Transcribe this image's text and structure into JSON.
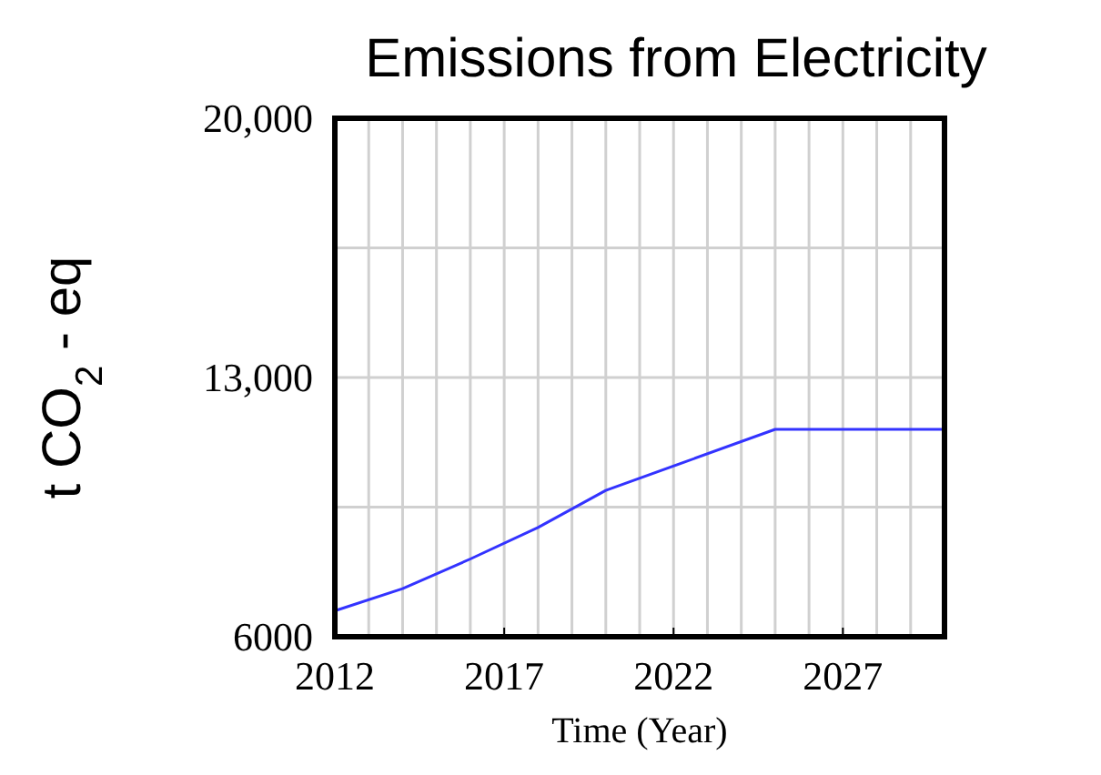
{
  "chart_data": {
    "type": "line",
    "title": "Emissions from Electricity",
    "xlabel": "Time (Year)",
    "ylabel": "t CO$_{2}$ - eq",
    "x": [
      2012,
      2014,
      2016,
      2018,
      2020,
      2025,
      2030
    ],
    "series": [
      {
        "color": "#3333ff",
        "values": [
          6700,
          7300,
          8100,
          8950,
          9950,
          11600,
          11600
        ]
      }
    ],
    "xlim": [
      2012,
      2030
    ],
    "xticks": [
      2012,
      2017,
      2022,
      2027
    ],
    "ylim": [
      6000,
      20000
    ],
    "yticks": [
      {
        "value": 6000,
        "label": "6000"
      },
      {
        "value": 9500,
        "label": null
      },
      {
        "value": 13000,
        "label": "13,000"
      },
      {
        "value": 16500,
        "label": null
      },
      {
        "value": 20000,
        "label": "20,000"
      }
    ],
    "grid": true,
    "marker": "none",
    "line_style": "solid"
  }
}
